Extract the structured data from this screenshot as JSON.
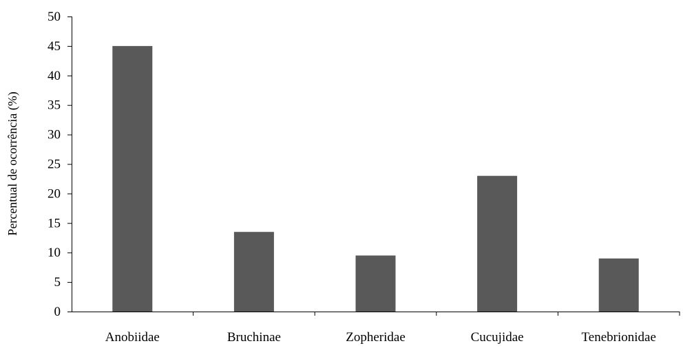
{
  "chart_data": {
    "type": "bar",
    "title": "",
    "xlabel": "",
    "ylabel": "Percentual de ocorrência (%)",
    "categories": [
      "Anobiidae",
      "Bruchinae",
      "Zopheridae",
      "Cucujidae",
      "Tenebrionidae"
    ],
    "values": [
      45,
      13.5,
      9.5,
      23,
      9
    ],
    "ylim": [
      0,
      50
    ],
    "yticks": [
      "0",
      "5",
      "10",
      "15",
      "20",
      "25",
      "30",
      "35",
      "40",
      "45",
      "50"
    ],
    "grid": false,
    "legend": "none",
    "bar_color": "#595959",
    "axis_color": "#000000"
  }
}
